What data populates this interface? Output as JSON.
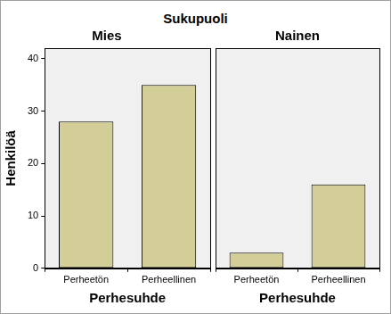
{
  "title": "Sukupuoli",
  "chart_data": [
    {
      "type": "bar",
      "title": "Mies",
      "x_label": "Perhesuhde",
      "y_label": "Henkilöä",
      "categories": [
        "Perheetön",
        "Perheellinen"
      ],
      "values": [
        28,
        35
      ],
      "color": "#d3ce97",
      "ylim": [
        0,
        42
      ],
      "yticks": [
        0,
        10,
        20,
        30,
        40
      ],
      "grid": false,
      "tick_labels": true
    },
    {
      "type": "bar",
      "title": "Nainen",
      "x_label": "Perhesuhde",
      "categories": [
        "Perheetön",
        "Perheellinen"
      ],
      "values": [
        3,
        16
      ],
      "color": "#d3ce97",
      "ylim": [
        0,
        42
      ],
      "yticks": [
        0,
        10,
        20,
        30,
        40
      ],
      "grid": false,
      "tick_labels": "x"
    }
  ]
}
